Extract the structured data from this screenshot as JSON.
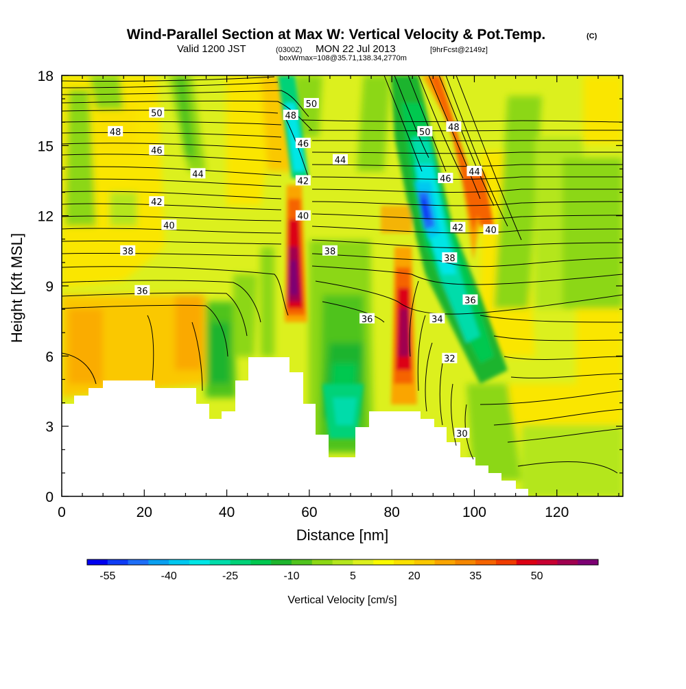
{
  "title": {
    "main": "Wind-Parallel Section at Max W: Vertical Velocity & Pot.Temp.",
    "copyright": "(C)",
    "valid_prefix": "Valid 1200 JST",
    "valid_utc": "(0300Z)",
    "valid_date": "MON 22 Jul 2013",
    "fcst": "[9hrFcst@2149z]",
    "box": "boxWmax=108@35.71,138.34,2770m"
  },
  "chart_data": {
    "type": "heatmap",
    "title": "Wind-Parallel Section at Max W: Vertical Velocity & Pot.Temp.",
    "xlabel": "Distance [nm]",
    "ylabel": "Height [Kft MSL]",
    "xlim": [
      0,
      136
    ],
    "ylim": [
      0,
      18
    ],
    "x_ticks": [
      "0",
      "20",
      "40",
      "60",
      "80",
      "100",
      "120"
    ],
    "y_ticks": [
      "0",
      "3",
      "6",
      "9",
      "12",
      "15",
      "18"
    ],
    "colorbar": {
      "label": "Vertical Velocity [cm/s]",
      "ticks": [
        "-55",
        "-40",
        "-25",
        "-10",
        "5",
        "20",
        "35",
        "50"
      ],
      "min": -60,
      "max": 65,
      "step": 5,
      "colors": [
        "#0000f0",
        "#0f3cf5",
        "#1e6ef7",
        "#0aa0f0",
        "#00c8f0",
        "#00e6e6",
        "#00dcaa",
        "#00d278",
        "#00c850",
        "#1eb42d",
        "#50c31e",
        "#8cd714",
        "#b4e61e",
        "#dcf01e",
        "#fafa00",
        "#fae100",
        "#fac800",
        "#faa500",
        "#f58700",
        "#f56400",
        "#f03c00",
        "#dc0014",
        "#c80032",
        "#a00050",
        "#7d0073"
      ]
    },
    "theta_contour_labels": [
      {
        "x": 23,
        "y": 16.4,
        "text": "50"
      },
      {
        "x": 13,
        "y": 15.6,
        "text": "48"
      },
      {
        "x": 23,
        "y": 14.8,
        "text": "46"
      },
      {
        "x": 33,
        "y": 13.8,
        "text": "44"
      },
      {
        "x": 23,
        "y": 12.6,
        "text": "42"
      },
      {
        "x": 26,
        "y": 11.6,
        "text": "40"
      },
      {
        "x": 16,
        "y": 10.5,
        "text": "38"
      },
      {
        "x": 19.5,
        "y": 8.8,
        "text": "36"
      },
      {
        "x": 60.5,
        "y": 16.8,
        "text": "50"
      },
      {
        "x": 55.5,
        "y": 16.3,
        "text": "48"
      },
      {
        "x": 58.5,
        "y": 15.1,
        "text": "46"
      },
      {
        "x": 67.5,
        "y": 14.4,
        "text": "44"
      },
      {
        "x": 58.5,
        "y": 13.5,
        "text": "42"
      },
      {
        "x": 58.5,
        "y": 12.0,
        "text": "40"
      },
      {
        "x": 65,
        "y": 10.5,
        "text": "38"
      },
      {
        "x": 74,
        "y": 7.6,
        "text": "36"
      },
      {
        "x": 88,
        "y": 15.6,
        "text": "50"
      },
      {
        "x": 95,
        "y": 15.8,
        "text": "48"
      },
      {
        "x": 93,
        "y": 13.6,
        "text": "46"
      },
      {
        "x": 100,
        "y": 13.9,
        "text": "44"
      },
      {
        "x": 96,
        "y": 11.5,
        "text": "42"
      },
      {
        "x": 104,
        "y": 11.4,
        "text": "40"
      },
      {
        "x": 94,
        "y": 10.2,
        "text": "38"
      },
      {
        "x": 99,
        "y": 8.4,
        "text": "36"
      },
      {
        "x": 91,
        "y": 7.6,
        "text": "34"
      },
      {
        "x": 94,
        "y": 5.9,
        "text": "32"
      },
      {
        "x": 97,
        "y": 2.7,
        "text": "30"
      }
    ]
  }
}
